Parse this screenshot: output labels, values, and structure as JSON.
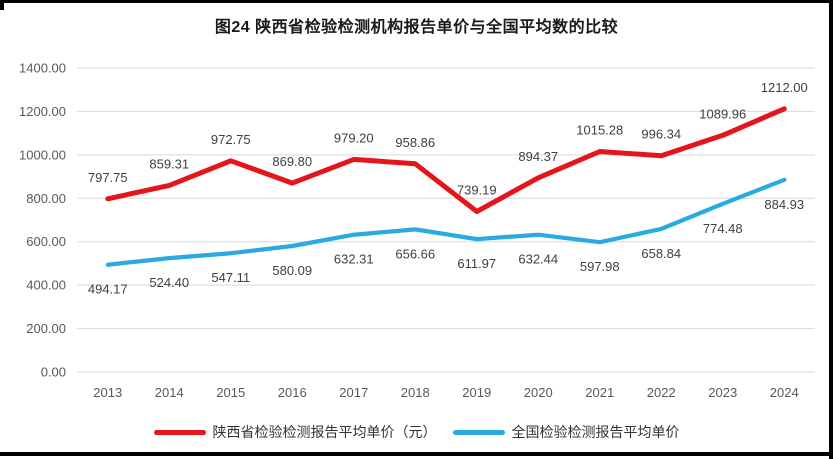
{
  "chart_data": {
    "type": "line",
    "title": "图24 陕西省检验检测机构报告单价与全国平均数的比较",
    "categories": [
      "2013",
      "2014",
      "2015",
      "2016",
      "2017",
      "2018",
      "2019",
      "2020",
      "2021",
      "2022",
      "2023",
      "2024"
    ],
    "series": [
      {
        "name": "陕西省检验检测报告平均单价（元）",
        "color": "#e4151b",
        "values": [
          797.75,
          859.31,
          972.75,
          869.8,
          979.2,
          958.86,
          739.19,
          894.37,
          1015.28,
          996.34,
          1089.96,
          1212.0
        ],
        "label_position": "above"
      },
      {
        "name": "全国检验检测报告平均单价",
        "color": "#29abe2",
        "values": [
          494.17,
          524.4,
          547.11,
          580.09,
          632.31,
          656.66,
          611.97,
          632.44,
          597.98,
          658.84,
          774.48,
          884.93
        ],
        "label_position": "below"
      }
    ],
    "y_ticks": [
      "1400.00",
      "1200.00",
      "1000.00",
      "800.00",
      "600.00",
      "400.00",
      "200.00",
      "0.00"
    ],
    "ylim": [
      0,
      1400
    ],
    "xlabel": "",
    "ylabel": "",
    "grid": true,
    "legend_position": "bottom",
    "grid_color": "#d9d9d9",
    "tick_label_color": "#595959",
    "data_label_color": "#404040"
  }
}
